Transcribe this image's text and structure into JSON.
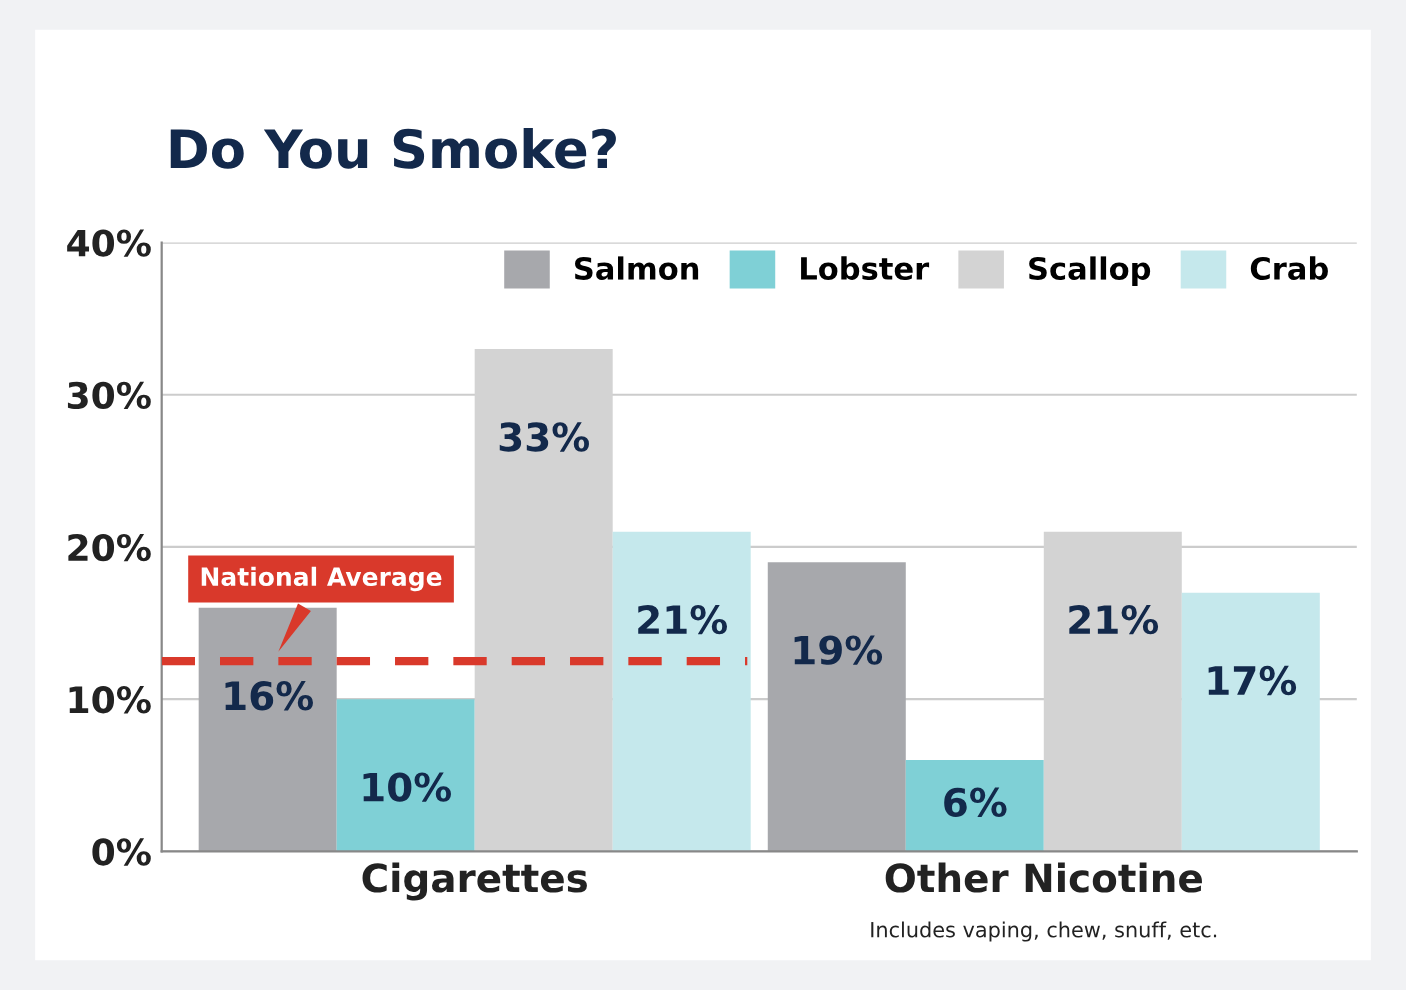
{
  "chart_data": {
    "type": "bar",
    "title": "Do You Smoke?",
    "categories": [
      "Cigarettes",
      "Other Nicotine"
    ],
    "series": [
      {
        "name": "Salmon",
        "color": "#a7a8ac",
        "values": [
          16,
          19
        ],
        "value_labels": [
          "16%",
          "19%"
        ]
      },
      {
        "name": "Lobster",
        "color": "#7fd0d6",
        "values": [
          10,
          6
        ],
        "value_labels": [
          "10%",
          "6%"
        ]
      },
      {
        "name": "Scallop",
        "color": "#d3d3d3",
        "values": [
          33,
          21
        ],
        "value_labels": [
          "33%",
          "21%"
        ]
      },
      {
        "name": "Crab",
        "color": "#c5e8ec",
        "values": [
          21,
          17
        ],
        "value_labels": [
          "21%",
          "17%"
        ]
      }
    ],
    "ylim": [
      0,
      40
    ],
    "yticks": [
      {
        "value": 0,
        "label": "0%"
      },
      {
        "value": 10,
        "label": "10%"
      },
      {
        "value": 20,
        "label": "20%"
      },
      {
        "value": 30,
        "label": "30%"
      },
      {
        "value": 40,
        "label": "40%"
      }
    ],
    "grid": "y",
    "legend": "top right",
    "ref_lines": [
      {
        "axis": "y",
        "value": 12.5,
        "label": "National Average",
        "color": "#d9392b",
        "line_style": "dashed"
      }
    ],
    "annotations": [
      "Includes vaping, chew, snuff, etc."
    ]
  }
}
